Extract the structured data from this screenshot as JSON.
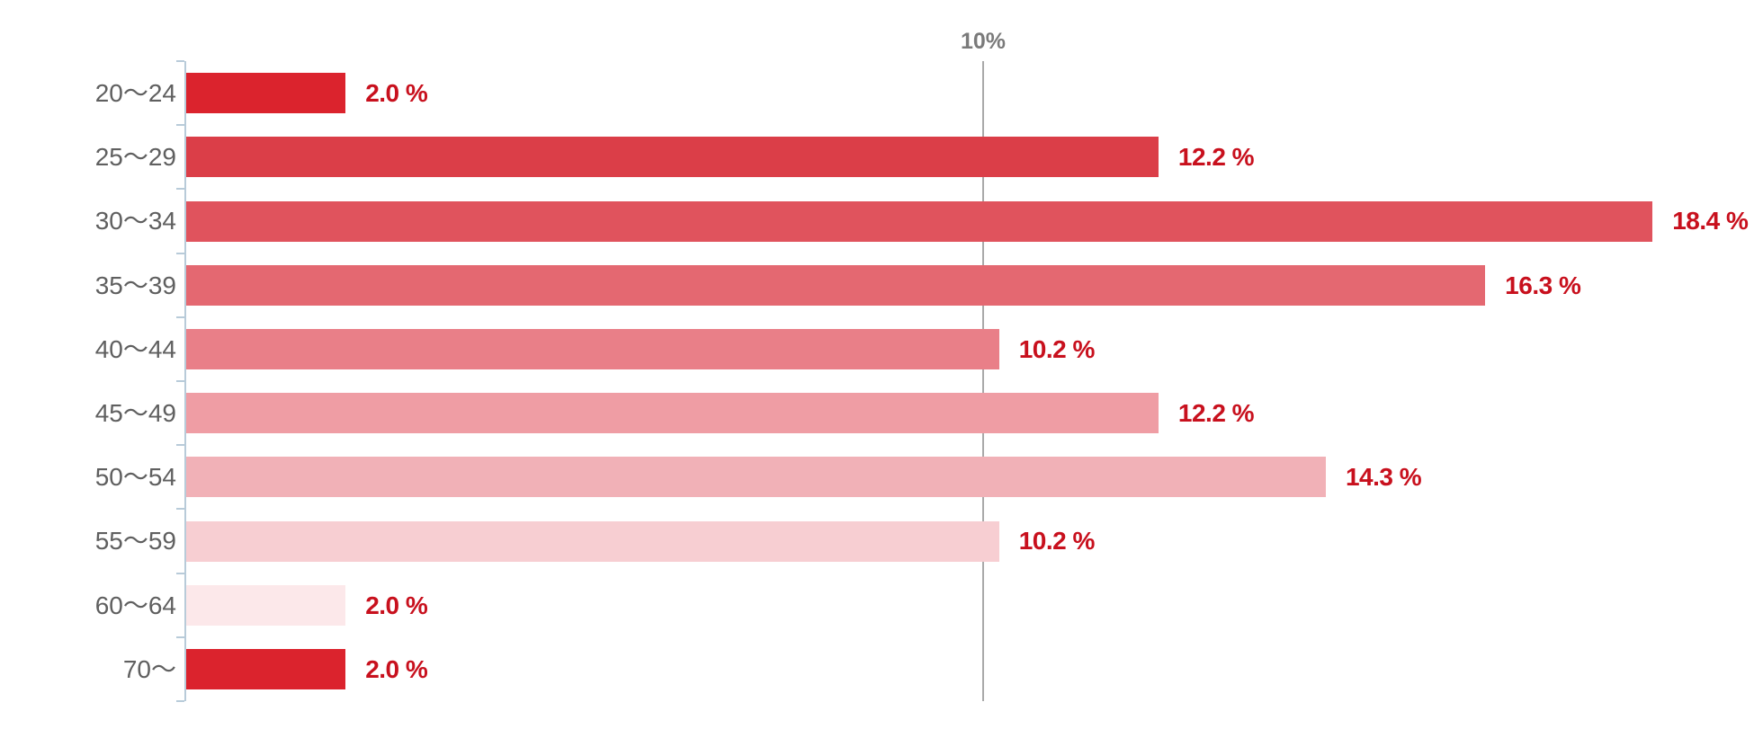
{
  "chart_data": {
    "type": "bar",
    "orientation": "horizontal",
    "title": "",
    "categories": [
      "20〜24",
      "25〜29",
      "30〜34",
      "35〜39",
      "40〜44",
      "45〜49",
      "50〜54",
      "55〜59",
      "60〜64",
      "70〜"
    ],
    "values": [
      2.0,
      12.2,
      18.4,
      16.3,
      10.2,
      12.2,
      14.3,
      10.2,
      2.0,
      2.0
    ],
    "value_labels": [
      "2.0 %",
      "12.2 %",
      "18.4 %",
      "16.3 %",
      "10.2 %",
      "12.2 %",
      "14.3 %",
      "10.2 %",
      "2.0 %",
      "2.0 %"
    ],
    "bar_colors": [
      "#db232d",
      "#db3e48",
      "#e0535d",
      "#e46871",
      "#e97f88",
      "#ef9da4",
      "#f1b1b7",
      "#f7ced2",
      "#fce8ea",
      "#db232d"
    ],
    "gridline": {
      "value": 10,
      "label": "10%"
    },
    "xlabel": "",
    "ylabel": "",
    "xlim": [
      0,
      19.7
    ],
    "grid": "single-vertical-reference-line",
    "legend": "none",
    "colors": {
      "axis": "#b8cbd9",
      "gridline": "#a9a9a9",
      "grid_label": "#7a7a7a",
      "category_label": "#5f5f5f",
      "value_label": "#c8101d",
      "background": "#ffffff"
    }
  }
}
